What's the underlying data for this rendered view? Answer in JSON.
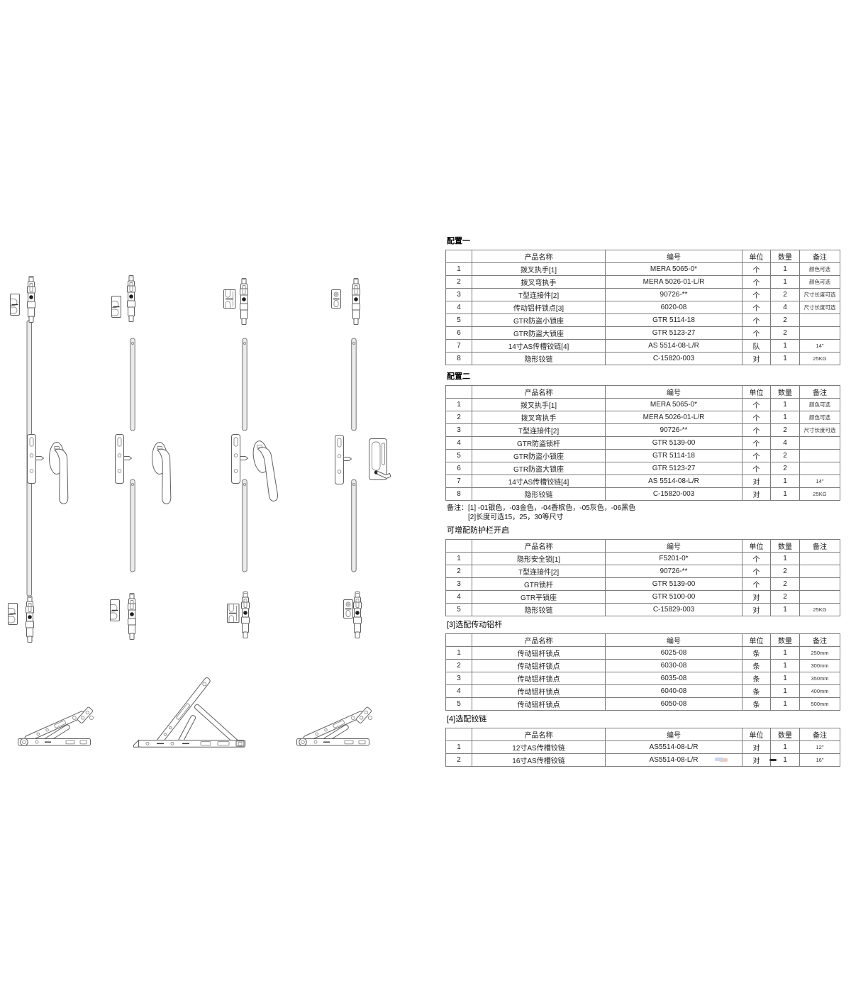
{
  "titles": {
    "config1": "配置一",
    "config2": "配置二",
    "guard": "可增配防护栏开启",
    "rod_options": "[3]选配传动铝杆",
    "hinge_options": "[4]选配铰链"
  },
  "notes": {
    "line1": "备注：[1] -01银色，-03金色，-04香槟色，-05灰色，-06黑色",
    "line2": "[2]长度可选15，25，30等尺寸"
  },
  "table_headers": [
    "",
    "产品名称",
    "编号",
    "单位",
    "数量",
    "备注"
  ],
  "tables": [
    {
      "key": "config1",
      "rows": [
        [
          "1",
          "拨叉执手[1]",
          "MERA 5065-0*",
          "个",
          "1",
          "颜色可选"
        ],
        [
          "2",
          "拨叉弯执手",
          "MERA 5026-01-L/R",
          "个",
          "1",
          "颜色可选"
        ],
        [
          "3",
          "T型连接件[2]",
          "90726-**",
          "个",
          "2",
          "尺寸长度可选"
        ],
        [
          "4",
          "传动铝杆锁点[3]",
          "6020-08",
          "个",
          "4",
          "尺寸长度可选"
        ],
        [
          "5",
          "GTR防盗小锁座",
          "GTR 5114-18",
          "个",
          "2",
          ""
        ],
        [
          "6",
          "GTR防盗大锁座",
          "GTR 5123-27",
          "个",
          "2",
          ""
        ],
        [
          "7",
          "14寸AS传槽铰链[4]",
          "AS 5514-08-L/R",
          "队",
          "1",
          "14\""
        ],
        [
          "8",
          "隐形铰链",
          "C-15820-003",
          "对",
          "1",
          "25KG"
        ]
      ]
    },
    {
      "key": "config2",
      "rows": [
        [
          "1",
          "拨叉执手[1]",
          "MERA 5065-0*",
          "个",
          "1",
          "颜色可选"
        ],
        [
          "2",
          "拨叉弯执手",
          "MERA 5026-01-L/R",
          "个",
          "1",
          "颜色可选"
        ],
        [
          "3",
          "T型连接件[2]",
          "90726-**",
          "个",
          "2",
          "尺寸长度可选"
        ],
        [
          "4",
          "GTR防盗锁杆",
          "GTR 5139-00",
          "个",
          "4",
          ""
        ],
        [
          "5",
          "GTR防盗小锁座",
          "GTR 5114-18",
          "个",
          "2",
          ""
        ],
        [
          "6",
          "GTR防盗大锁座",
          "GTR 5123-27",
          "个",
          "2",
          ""
        ],
        [
          "7",
          "14寸AS传槽铰链[4]",
          "AS 5514-08-L/R",
          "对",
          "1",
          "14\""
        ],
        [
          "8",
          "隐形铰链",
          "C-15820-003",
          "对",
          "1",
          "25KG"
        ]
      ]
    },
    {
      "key": "guard",
      "rows": [
        [
          "1",
          "隐形安全锁[1]",
          "F5201-0*",
          "个",
          "1",
          ""
        ],
        [
          "2",
          "T型连接件[2]",
          "90726-**",
          "个",
          "2",
          ""
        ],
        [
          "3",
          "GTR锁杆",
          "GTR 5139-00",
          "个",
          "2",
          ""
        ],
        [
          "4",
          "GTR平锁座",
          "GTR 5100-00",
          "对",
          "2",
          ""
        ],
        [
          "5",
          "隐形铰链",
          "C-15829-003",
          "对",
          "1",
          "25KG"
        ]
      ]
    },
    {
      "key": "rod_options",
      "rows": [
        [
          "1",
          "传动铝杆锁点",
          "6025-08",
          "条",
          "1",
          "250mm"
        ],
        [
          "2",
          "传动铝杆锁点",
          "6030-08",
          "条",
          "1",
          "300mm"
        ],
        [
          "3",
          "传动铝杆锁点",
          "6035-08",
          "条",
          "1",
          "350mm"
        ],
        [
          "4",
          "传动铝杆锁点",
          "6040-08",
          "条",
          "1",
          "400mm"
        ],
        [
          "5",
          "传动铝杆锁点",
          "6050-08",
          "条",
          "1",
          "500mm"
        ]
      ]
    },
    {
      "key": "hinge_options",
      "rows": [
        [
          "1",
          "12寸AS传槽铰链",
          "AS5514-08-L/R",
          "对",
          "1",
          "12\""
        ],
        [
          "2",
          "16寸AS传槽铰链",
          "AS5514-08-L/R",
          "对",
          "1",
          "16\""
        ]
      ]
    }
  ],
  "diagram": {
    "line_color": "#5f5f5f",
    "parts": [
      {
        "name": "keeper-plate",
        "count": 8
      },
      {
        "name": "espagnolette-lock",
        "count": 8
      },
      {
        "name": "drive-rod",
        "count": 7
      },
      {
        "name": "handle-escutcheon",
        "count": 4
      },
      {
        "name": "window-handle",
        "count": 3
      },
      {
        "name": "hidden-safety-lock",
        "count": 1
      },
      {
        "name": "friction-stay-closed",
        "count": 2
      },
      {
        "name": "friction-stay-open",
        "count": 1
      }
    ]
  }
}
